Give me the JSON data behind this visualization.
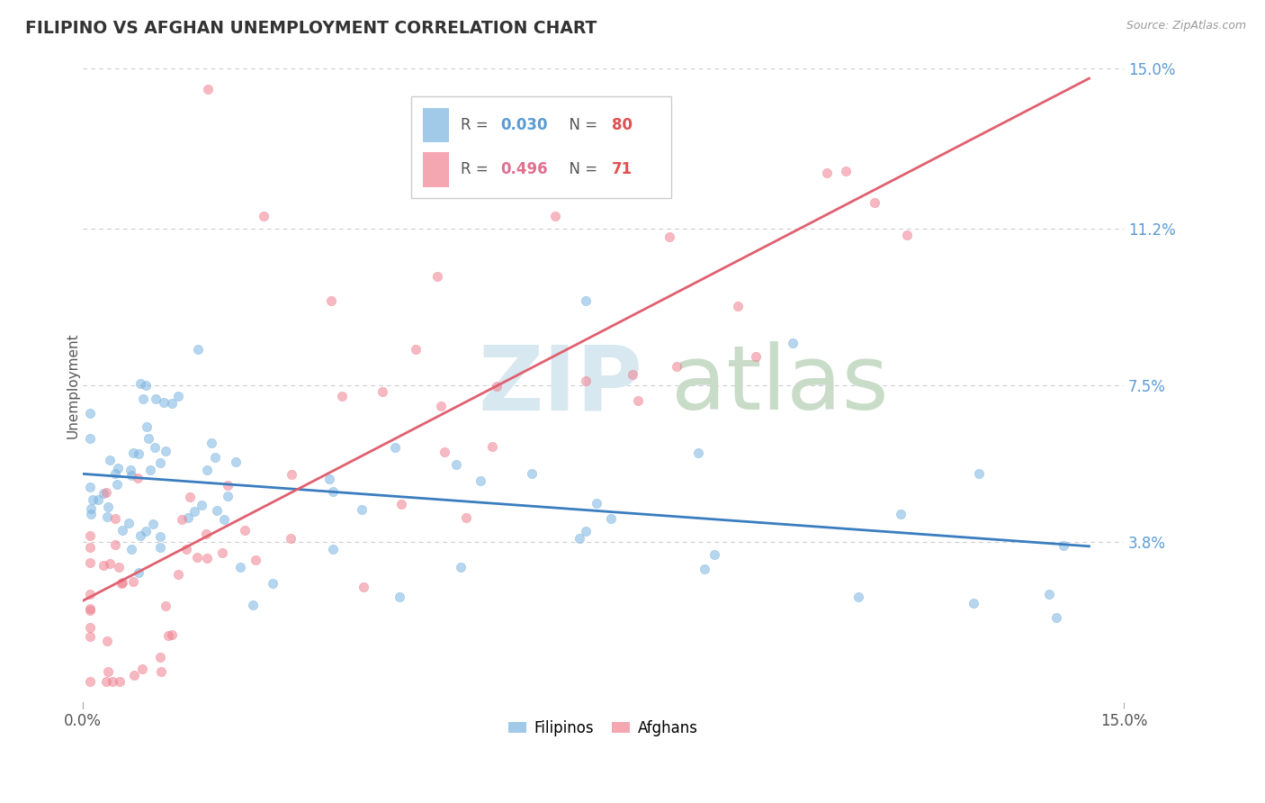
{
  "title": "FILIPINO VS AFGHAN UNEMPLOYMENT CORRELATION CHART",
  "source": "Source: ZipAtlas.com",
  "ylabel": "Unemployment",
  "xlim": [
    0.0,
    0.15
  ],
  "ylim": [
    0.0,
    0.15
  ],
  "ytick_labels": [
    "3.8%",
    "7.5%",
    "11.2%",
    "15.0%"
  ],
  "ytick_values": [
    0.038,
    0.075,
    0.112,
    0.15
  ],
  "xtick_left_label": "0.0%",
  "xtick_right_label": "15.0%",
  "blue_color": "#7ab4e0",
  "pink_color": "#f08090",
  "blue_label": "Filipinos",
  "pink_label": "Afghans",
  "blue_R": "0.030",
  "blue_N": "80",
  "pink_R": "0.496",
  "pink_N": "71",
  "background_color": "#ffffff",
  "grid_color": "#cccccc",
  "right_axis_color": "#5b9bd5",
  "legend_text_color": "#555555",
  "legend_R_blue_color": "#5b9bd5",
  "legend_R_pink_color": "#e07090",
  "legend_N_color": "#e05050",
  "watermark_zip_color": "#d8e8f0",
  "watermark_atlas_color": "#c8dcc8"
}
